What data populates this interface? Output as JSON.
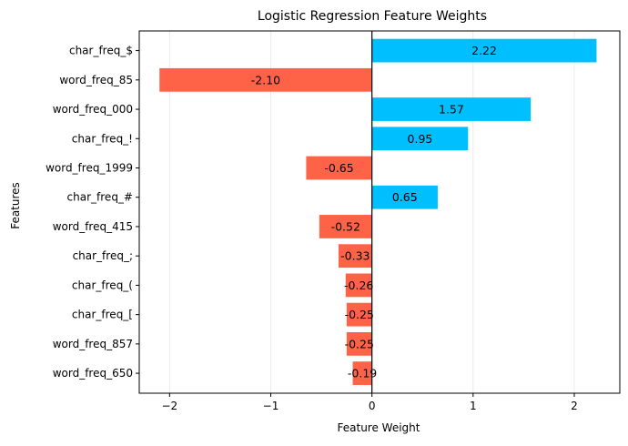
{
  "chart_data": {
    "type": "bar",
    "orientation": "horizontal",
    "title": "Logistic Regression Feature Weights",
    "xlabel": "Feature Weight",
    "ylabel": "Features",
    "xlim": [
      -2.3,
      2.45
    ],
    "xticks": [
      -2,
      -1,
      0,
      1,
      2
    ],
    "xtick_labels": [
      "−2",
      "−1",
      "0",
      "1",
      "2"
    ],
    "grid": "vertical, light",
    "categories": [
      "char_freq_$",
      "word_freq_85",
      "word_freq_000",
      "char_freq_!",
      "word_freq_1999",
      "char_freq_#",
      "word_freq_415",
      "char_freq_;",
      "char_freq_(",
      "char_freq_[",
      "word_freq_857",
      "word_freq_650"
    ],
    "values": [
      2.22,
      -2.1,
      1.57,
      0.95,
      -0.65,
      0.65,
      -0.52,
      -0.33,
      -0.26,
      -0.25,
      -0.25,
      -0.19
    ],
    "value_labels": [
      "2.22",
      "-2.10",
      "1.57",
      "0.95",
      "-0.65",
      "0.65",
      "-0.52",
      "-0.33",
      "-0.26",
      "-0.25",
      "-0.25",
      "-0.19"
    ],
    "colors": {
      "positive": "#00bfff",
      "negative": "#ff6347"
    }
  }
}
